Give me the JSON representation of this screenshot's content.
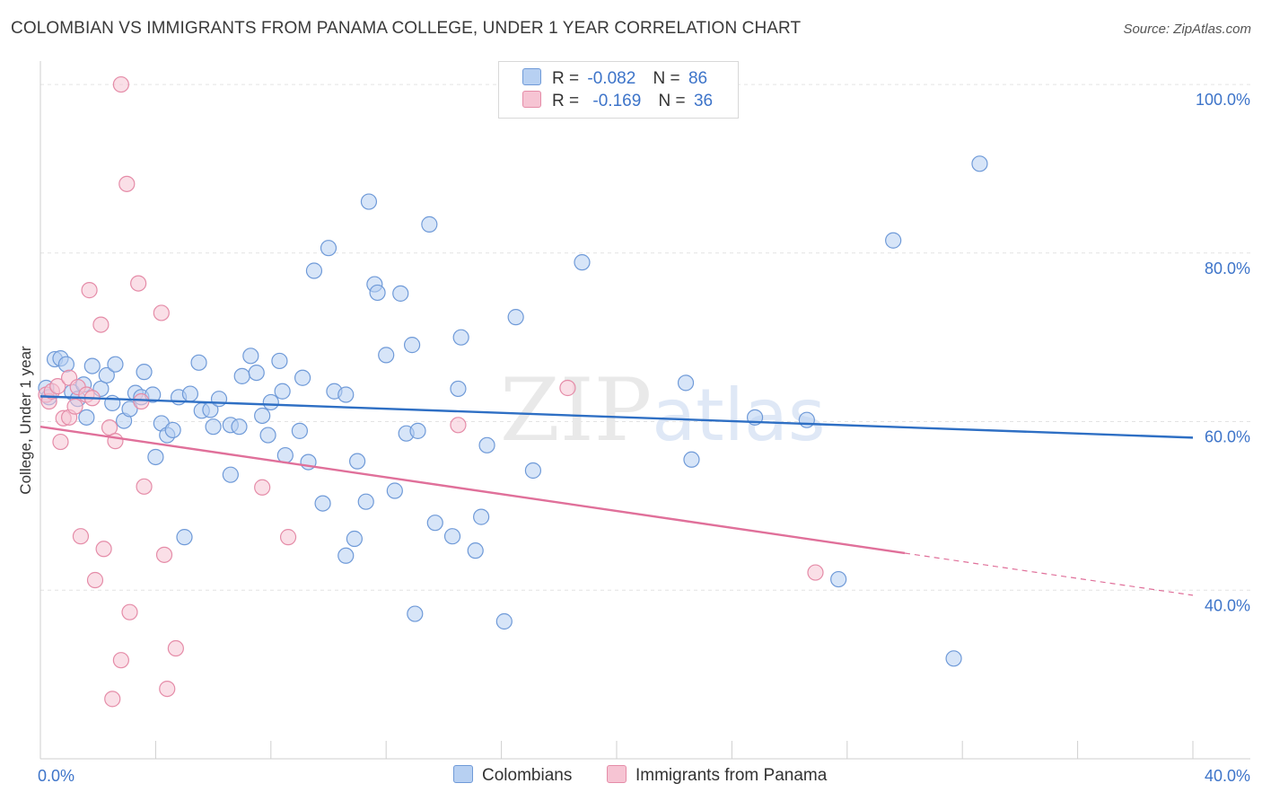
{
  "header": {
    "title": "COLOMBIAN VS IMMIGRANTS FROM PANAMA COLLEGE, UNDER 1 YEAR CORRELATION CHART",
    "source": "Source: ZipAtlas.com"
  },
  "legend": {
    "rows": [
      {
        "r_label": "R =",
        "r_value": "-0.082",
        "n_label": "N =",
        "n_value": "86"
      },
      {
        "r_label": "R =",
        "r_value": "-0.169",
        "n_label": "N =",
        "n_value": "36"
      }
    ],
    "bottom": [
      "Colombians",
      "Immigrants from Panama"
    ]
  },
  "watermark": {
    "part1": "ZIP",
    "part2": "atlas"
  },
  "colors": {
    "blue_fill": "#b7d0f2",
    "blue_stroke": "#6f9ad8",
    "blue_line": "#2e6fc4",
    "pink_fill": "#f6c4d3",
    "pink_stroke": "#e58ca8",
    "pink_line": "#e0709a",
    "axis_text": "#3d74c9",
    "grid": "#e3e3e3"
  },
  "chart_data": {
    "type": "scatter",
    "title": "COLOMBIAN VS IMMIGRANTS FROM PANAMA COLLEGE, UNDER 1 YEAR CORRELATION CHART",
    "xlabel": "",
    "ylabel": "College, Under 1 year",
    "xlim": [
      0,
      40
    ],
    "ylim": [
      20,
      101.5
    ],
    "x_ticks": [
      "0.0%",
      "40.0%"
    ],
    "y_ticks": [
      {
        "value": 100,
        "label": "100.0%"
      },
      {
        "value": 80,
        "label": "80.0%"
      },
      {
        "value": 60,
        "label": "60.0%"
      },
      {
        "value": 40,
        "label": "40.0%"
      }
    ],
    "series": [
      {
        "name": "Colombians",
        "r": -0.082,
        "n": 86,
        "trend": {
          "x0": 0,
          "y0": 63.0,
          "x1": 40,
          "y1": 58.1
        },
        "points": [
          [
            0.2,
            64.0
          ],
          [
            0.3,
            62.9
          ],
          [
            0.5,
            67.4
          ],
          [
            0.7,
            67.5
          ],
          [
            0.9,
            66.8
          ],
          [
            1.1,
            63.5
          ],
          [
            1.3,
            62.7
          ],
          [
            1.5,
            64.4
          ],
          [
            1.6,
            60.5
          ],
          [
            1.8,
            66.6
          ],
          [
            2.1,
            63.9
          ],
          [
            2.3,
            65.5
          ],
          [
            2.5,
            62.2
          ],
          [
            2.6,
            66.8
          ],
          [
            2.9,
            60.1
          ],
          [
            3.1,
            61.5
          ],
          [
            3.3,
            63.4
          ],
          [
            3.5,
            62.9
          ],
          [
            3.6,
            65.9
          ],
          [
            3.9,
            63.2
          ],
          [
            4.0,
            55.8
          ],
          [
            4.2,
            59.8
          ],
          [
            4.4,
            58.4
          ],
          [
            4.6,
            59.0
          ],
          [
            4.8,
            62.9
          ],
          [
            5.0,
            46.3
          ],
          [
            5.2,
            63.3
          ],
          [
            5.5,
            67.0
          ],
          [
            5.6,
            61.3
          ],
          [
            5.9,
            61.4
          ],
          [
            6.0,
            59.4
          ],
          [
            6.2,
            62.7
          ],
          [
            6.6,
            59.6
          ],
          [
            6.6,
            53.7
          ],
          [
            6.9,
            59.4
          ],
          [
            7.0,
            65.4
          ],
          [
            7.3,
            67.8
          ],
          [
            7.5,
            65.8
          ],
          [
            7.7,
            60.7
          ],
          [
            7.9,
            58.4
          ],
          [
            8.0,
            62.3
          ],
          [
            8.3,
            67.2
          ],
          [
            8.4,
            63.6
          ],
          [
            8.5,
            56.0
          ],
          [
            9.1,
            65.2
          ],
          [
            9.0,
            58.9
          ],
          [
            9.3,
            55.2
          ],
          [
            9.5,
            77.9
          ],
          [
            9.8,
            50.3
          ],
          [
            10.0,
            80.6
          ],
          [
            10.2,
            63.6
          ],
          [
            10.6,
            63.2
          ],
          [
            10.6,
            44.1
          ],
          [
            10.9,
            46.1
          ],
          [
            11.0,
            55.3
          ],
          [
            11.3,
            50.5
          ],
          [
            11.4,
            86.1
          ],
          [
            11.6,
            76.3
          ],
          [
            11.7,
            75.3
          ],
          [
            12.0,
            67.9
          ],
          [
            12.3,
            51.8
          ],
          [
            12.5,
            75.2
          ],
          [
            12.7,
            58.6
          ],
          [
            12.9,
            69.1
          ],
          [
            13.0,
            37.2
          ],
          [
            13.1,
            58.9
          ],
          [
            13.5,
            83.4
          ],
          [
            13.7,
            48.0
          ],
          [
            14.3,
            46.4
          ],
          [
            14.5,
            63.9
          ],
          [
            14.6,
            70.0
          ],
          [
            15.1,
            44.7
          ],
          [
            15.3,
            48.7
          ],
          [
            15.5,
            57.2
          ],
          [
            16.1,
            36.3
          ],
          [
            16.5,
            72.4
          ],
          [
            17.1,
            54.2
          ],
          [
            18.8,
            78.9
          ],
          [
            22.4,
            64.6
          ],
          [
            22.6,
            55.5
          ],
          [
            24.8,
            60.5
          ],
          [
            26.6,
            60.2
          ],
          [
            27.7,
            41.3
          ],
          [
            29.6,
            81.5
          ],
          [
            31.7,
            31.9
          ],
          [
            32.6,
            90.6
          ]
        ]
      },
      {
        "name": "Immigrants from Panama",
        "r": -0.169,
        "n": 36,
        "trend": {
          "x0": 0,
          "y0": 59.4,
          "x1": 30,
          "y1": 44.4,
          "dash_x1": 40,
          "dash_y1": 39.4
        },
        "points": [
          [
            0.2,
            63.2
          ],
          [
            0.3,
            62.4
          ],
          [
            0.4,
            63.6
          ],
          [
            0.6,
            64.2
          ],
          [
            0.7,
            57.6
          ],
          [
            0.8,
            60.4
          ],
          [
            1.0,
            60.5
          ],
          [
            1.0,
            65.2
          ],
          [
            1.2,
            61.8
          ],
          [
            1.3,
            64.1
          ],
          [
            1.4,
            46.4
          ],
          [
            1.6,
            63.2
          ],
          [
            1.7,
            75.6
          ],
          [
            1.8,
            62.8
          ],
          [
            1.9,
            41.2
          ],
          [
            2.1,
            71.5
          ],
          [
            2.2,
            44.9
          ],
          [
            2.4,
            59.3
          ],
          [
            2.5,
            27.1
          ],
          [
            2.6,
            57.7
          ],
          [
            2.8,
            31.7
          ],
          [
            2.8,
            100.0
          ],
          [
            3.0,
            88.2
          ],
          [
            3.1,
            37.4
          ],
          [
            3.4,
            76.4
          ],
          [
            3.5,
            62.4
          ],
          [
            3.6,
            52.3
          ],
          [
            4.2,
            72.9
          ],
          [
            4.3,
            44.2
          ],
          [
            4.4,
            28.3
          ],
          [
            4.7,
            33.1
          ],
          [
            7.7,
            52.2
          ],
          [
            8.6,
            46.3
          ],
          [
            14.5,
            59.6
          ],
          [
            18.3,
            64.0
          ],
          [
            26.9,
            42.1
          ]
        ]
      }
    ]
  }
}
